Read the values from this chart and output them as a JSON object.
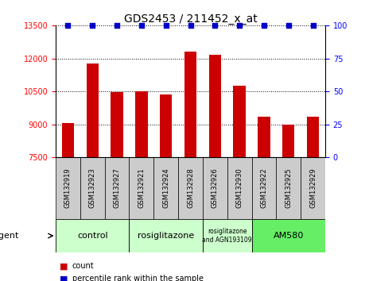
{
  "title": "GDS2453 / 211452_x_at",
  "samples": [
    "GSM132919",
    "GSM132923",
    "GSM132927",
    "GSM132921",
    "GSM132924",
    "GSM132928",
    "GSM132926",
    "GSM132930",
    "GSM132922",
    "GSM132925",
    "GSM132929"
  ],
  "counts": [
    9050,
    11750,
    10450,
    10500,
    10350,
    12300,
    12150,
    10750,
    9350,
    8980,
    9350
  ],
  "percentiles": [
    100,
    100,
    100,
    100,
    100,
    100,
    100,
    100,
    100,
    100,
    100
  ],
  "ylim_left": [
    7500,
    13500
  ],
  "ylim_right": [
    0,
    100
  ],
  "yticks_left": [
    7500,
    9000,
    10500,
    12000,
    13500
  ],
  "yticks_right": [
    0,
    25,
    50,
    75,
    100
  ],
  "bar_color": "#cc0000",
  "dot_color": "#0000cc",
  "grid_color": "#000000",
  "background_color": "#ffffff",
  "group_extents": [
    {
      "label": "control",
      "start": 0,
      "end": 2,
      "color": "#ccffcc"
    },
    {
      "label": "rosiglitazone",
      "start": 3,
      "end": 5,
      "color": "#ccffcc"
    },
    {
      "label": "rosiglitazone\nand AGN193109",
      "start": 6,
      "end": 7,
      "color": "#ccffcc"
    },
    {
      "label": "AM580",
      "start": 8,
      "end": 10,
      "color": "#66ee66"
    }
  ],
  "sample_box_color": "#cccccc",
  "agent_label": "agent",
  "legend_count_label": "count",
  "legend_percentile_label": "percentile rank within the sample",
  "title_fontsize": 10,
  "tick_fontsize": 7,
  "bar_width": 0.5
}
